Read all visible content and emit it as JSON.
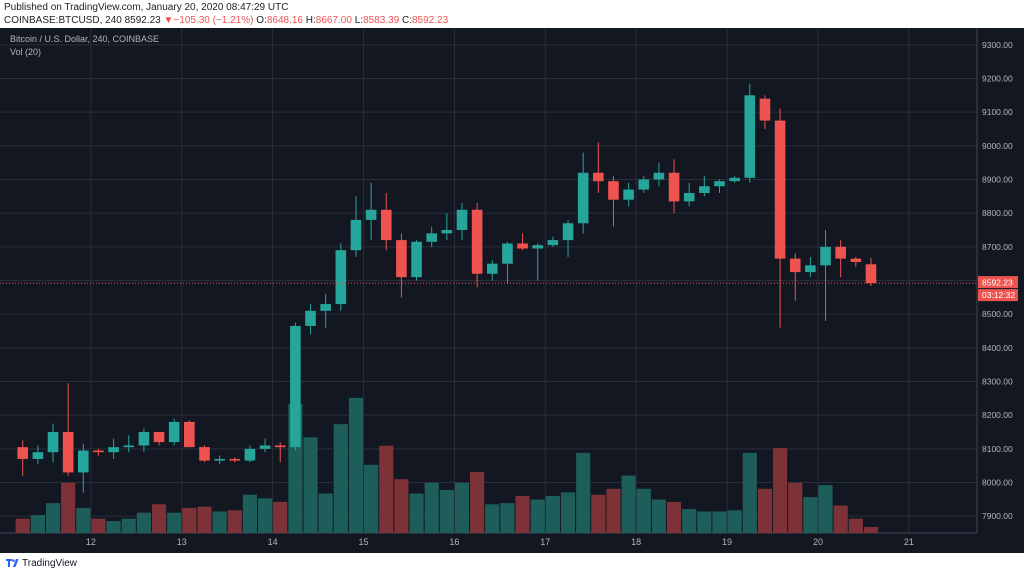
{
  "header": {
    "published": "Published on TradingView.com, January 20, 2020 08:47:29 UTC",
    "symbol": "COINBASE:BTCUSD, 240",
    "last": "8592.23",
    "change_arrow": "▼",
    "change": "−105.30 (−1.21%)",
    "o_label": "O:",
    "o": "8648.16",
    "h_label": "H:",
    "h": "8667.00",
    "l_label": "L:",
    "l": "8583.39",
    "c_label": "C:",
    "c": "8592.23"
  },
  "legend": {
    "series": "Bitcoin / U.S. Dollar, 240, COINBASE",
    "volume": "Vol (20)"
  },
  "price_badge": {
    "value": "8592.23",
    "countdown": "03:12:32"
  },
  "footer": {
    "brand": "TradingView"
  },
  "colors": {
    "background": "#131722",
    "grid": "#2a2e39",
    "up": "#26a69a",
    "down": "#ef5350",
    "vol_up": "#1e5e5a",
    "vol_down": "#7c3236",
    "axis_text": "#b2b5be"
  },
  "chart_data": {
    "type": "candlestick",
    "price_range": [
      7850,
      9350
    ],
    "y_ticks": [
      "7900.00",
      "8000.00",
      "8100.00",
      "8200.00",
      "8300.00",
      "8400.00",
      "8500.00",
      "8600.00",
      "8700.00",
      "8800.00",
      "8900.00",
      "9000.00",
      "9100.00",
      "9200.00",
      "9300.00"
    ],
    "x_ticks": [
      "12",
      "13",
      "14",
      "15",
      "16",
      "17",
      "18",
      "19",
      "20",
      "21"
    ],
    "bar_period_hours": 4,
    "first_bar_day": 11.25,
    "candles": [
      {
        "o": 8105,
        "h": 8125,
        "l": 8020,
        "c": 8070,
        "v": 0.12
      },
      {
        "o": 8070,
        "h": 8110,
        "l": 8055,
        "c": 8090,
        "v": 0.15
      },
      {
        "o": 8090,
        "h": 8175,
        "l": 8060,
        "c": 8150,
        "v": 0.25
      },
      {
        "o": 8150,
        "h": 8295,
        "l": 8020,
        "c": 8030,
        "v": 0.42
      },
      {
        "o": 8030,
        "h": 8115,
        "l": 7970,
        "c": 8095,
        "v": 0.21
      },
      {
        "o": 8095,
        "h": 8100,
        "l": 8080,
        "c": 8090,
        "v": 0.12
      },
      {
        "o": 8090,
        "h": 8130,
        "l": 8070,
        "c": 8105,
        "v": 0.1
      },
      {
        "o": 8105,
        "h": 8140,
        "l": 8090,
        "c": 8110,
        "v": 0.12
      },
      {
        "o": 8110,
        "h": 8160,
        "l": 8090,
        "c": 8150,
        "v": 0.17
      },
      {
        "o": 8150,
        "h": 8140,
        "l": 8110,
        "c": 8120,
        "v": 0.24
      },
      {
        "o": 8120,
        "h": 8190,
        "l": 8110,
        "c": 8180,
        "v": 0.17
      },
      {
        "o": 8180,
        "h": 8185,
        "l": 8105,
        "c": 8105,
        "v": 0.21
      },
      {
        "o": 8105,
        "h": 8110,
        "l": 8060,
        "c": 8065,
        "v": 0.22
      },
      {
        "o": 8065,
        "h": 8080,
        "l": 8055,
        "c": 8070,
        "v": 0.18
      },
      {
        "o": 8070,
        "h": 8075,
        "l": 8060,
        "c": 8065,
        "v": 0.19
      },
      {
        "o": 8065,
        "h": 8110,
        "l": 8060,
        "c": 8100,
        "v": 0.32
      },
      {
        "o": 8100,
        "h": 8130,
        "l": 8090,
        "c": 8110,
        "v": 0.29
      },
      {
        "o": 8110,
        "h": 8120,
        "l": 8060,
        "c": 8105,
        "v": 0.26
      },
      {
        "o": 8105,
        "h": 8475,
        "l": 8095,
        "c": 8465,
        "v": 1.08
      },
      {
        "o": 8465,
        "h": 8530,
        "l": 8440,
        "c": 8510,
        "v": 0.8
      },
      {
        "o": 8510,
        "h": 8560,
        "l": 8460,
        "c": 8530,
        "v": 0.33
      },
      {
        "o": 8530,
        "h": 8710,
        "l": 8510,
        "c": 8690,
        "v": 0.91
      },
      {
        "o": 8690,
        "h": 8850,
        "l": 8670,
        "c": 8780,
        "v": 1.13
      },
      {
        "o": 8780,
        "h": 8890,
        "l": 8720,
        "c": 8810,
        "v": 0.57
      },
      {
        "o": 8810,
        "h": 8860,
        "l": 8690,
        "c": 8720,
        "v": 0.73
      },
      {
        "o": 8720,
        "h": 8740,
        "l": 8550,
        "c": 8610,
        "v": 0.45
      },
      {
        "o": 8610,
        "h": 8720,
        "l": 8600,
        "c": 8715,
        "v": 0.33
      },
      {
        "o": 8715,
        "h": 8760,
        "l": 8700,
        "c": 8740,
        "v": 0.42
      },
      {
        "o": 8740,
        "h": 8800,
        "l": 8720,
        "c": 8750,
        "v": 0.36
      },
      {
        "o": 8750,
        "h": 8830,
        "l": 8720,
        "c": 8810,
        "v": 0.42
      },
      {
        "o": 8810,
        "h": 8830,
        "l": 8580,
        "c": 8620,
        "v": 0.51
      },
      {
        "o": 8620,
        "h": 8660,
        "l": 8600,
        "c": 8650,
        "v": 0.24
      },
      {
        "o": 8650,
        "h": 8715,
        "l": 8590,
        "c": 8710,
        "v": 0.25
      },
      {
        "o": 8710,
        "h": 8740,
        "l": 8690,
        "c": 8695,
        "v": 0.31
      },
      {
        "o": 8695,
        "h": 8710,
        "l": 8600,
        "c": 8705,
        "v": 0.28
      },
      {
        "o": 8705,
        "h": 8730,
        "l": 8700,
        "c": 8720,
        "v": 0.31
      },
      {
        "o": 8720,
        "h": 8780,
        "l": 8670,
        "c": 8770,
        "v": 0.34
      },
      {
        "o": 8770,
        "h": 8980,
        "l": 8740,
        "c": 8920,
        "v": 0.67
      },
      {
        "o": 8920,
        "h": 9010,
        "l": 8860,
        "c": 8895,
        "v": 0.32
      },
      {
        "o": 8895,
        "h": 8910,
        "l": 8760,
        "c": 8840,
        "v": 0.37
      },
      {
        "o": 8840,
        "h": 8890,
        "l": 8820,
        "c": 8870,
        "v": 0.48
      },
      {
        "o": 8870,
        "h": 8910,
        "l": 8860,
        "c": 8900,
        "v": 0.37
      },
      {
        "o": 8900,
        "h": 8950,
        "l": 8880,
        "c": 8920,
        "v": 0.28
      },
      {
        "o": 8920,
        "h": 8960,
        "l": 8800,
        "c": 8835,
        "v": 0.26
      },
      {
        "o": 8835,
        "h": 8890,
        "l": 8820,
        "c": 8860,
        "v": 0.2
      },
      {
        "o": 8860,
        "h": 8910,
        "l": 8850,
        "c": 8880,
        "v": 0.18
      },
      {
        "o": 8880,
        "h": 8900,
        "l": 8860,
        "c": 8895,
        "v": 0.18
      },
      {
        "o": 8895,
        "h": 8910,
        "l": 8890,
        "c": 8905,
        "v": 0.19
      },
      {
        "o": 8905,
        "h": 9185,
        "l": 8890,
        "c": 9150,
        "v": 0.67
      },
      {
        "o": 9140,
        "h": 9150,
        "l": 9050,
        "c": 9075,
        "v": 0.37
      },
      {
        "o": 9075,
        "h": 9110,
        "l": 8460,
        "c": 8665,
        "v": 0.71
      },
      {
        "o": 8665,
        "h": 8680,
        "l": 8540,
        "c": 8625,
        "v": 0.42
      },
      {
        "o": 8625,
        "h": 8670,
        "l": 8610,
        "c": 8645,
        "v": 0.3
      },
      {
        "o": 8645,
        "h": 8750,
        "l": 8480,
        "c": 8700,
        "v": 0.4
      },
      {
        "o": 8700,
        "h": 8720,
        "l": 8610,
        "c": 8665,
        "v": 0.23
      },
      {
        "o": 8665,
        "h": 8670,
        "l": 8640,
        "c": 8655,
        "v": 0.12
      },
      {
        "o": 8648.16,
        "h": 8667.0,
        "l": 8583.39,
        "c": 8592.23,
        "v": 0.05
      }
    ]
  }
}
